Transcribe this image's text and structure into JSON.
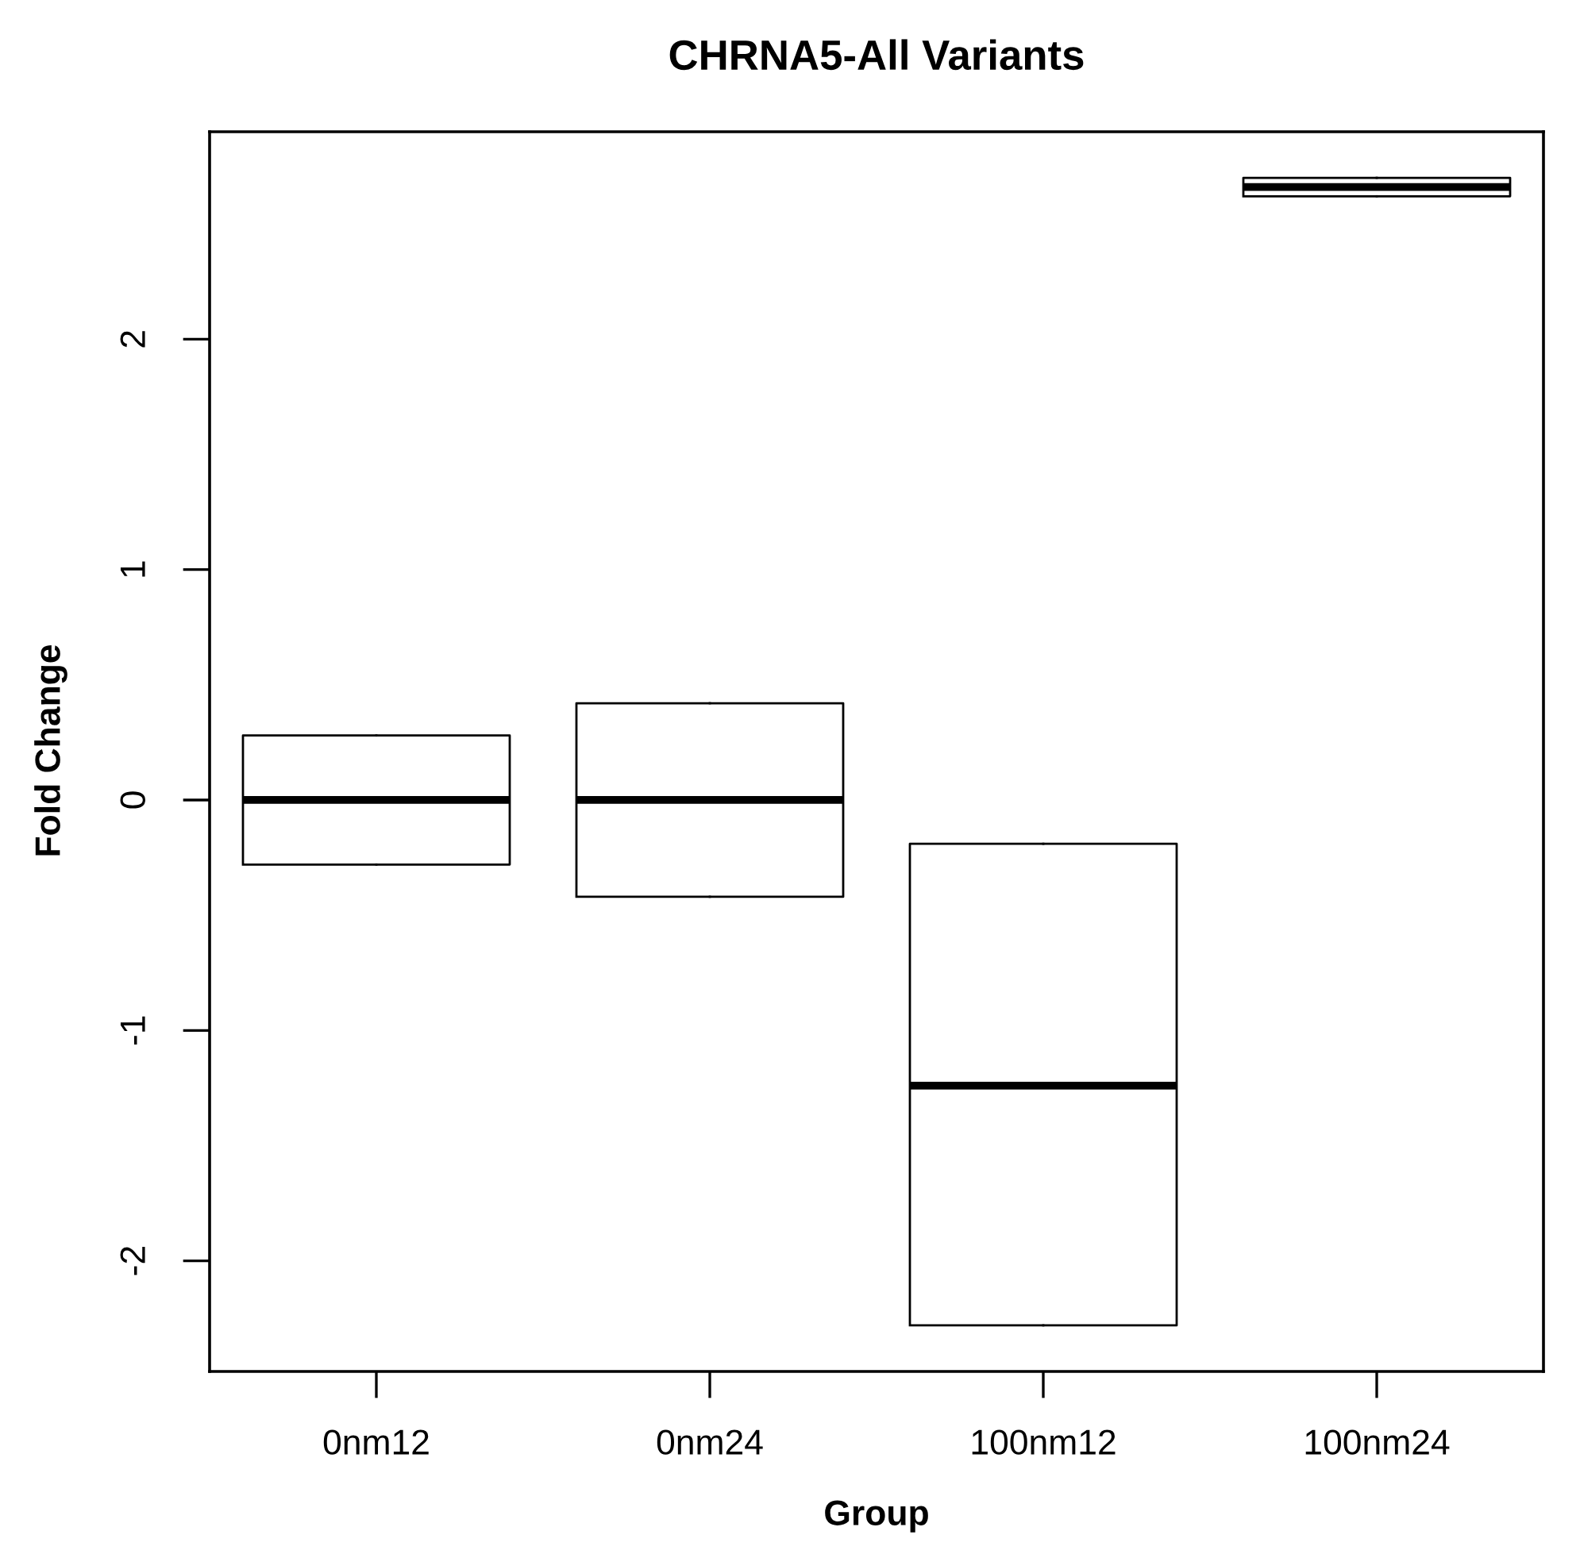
{
  "chart_data": {
    "type": "box",
    "title": "CHRNA5-All Variants",
    "xlabel": "Group",
    "ylabel": "Fold Change",
    "categories": [
      "0nm12",
      "0nm24",
      "100nm12",
      "100nm24"
    ],
    "boxes": [
      {
        "low": -0.28,
        "q1": -0.28,
        "median": 0.0,
        "q3": 0.28,
        "high": 0.28
      },
      {
        "low": -0.42,
        "q1": -0.42,
        "median": 0.0,
        "q3": 0.42,
        "high": 0.42
      },
      {
        "low": -2.28,
        "q1": -2.28,
        "median": -1.24,
        "q3": -0.19,
        "high": -0.19
      },
      {
        "low": 2.62,
        "q1": 2.62,
        "median": 2.66,
        "q3": 2.7,
        "high": 2.7
      }
    ],
    "ylim": [
      -2.48,
      2.9
    ],
    "yticks": [
      -2,
      -1,
      0,
      1,
      2
    ],
    "grid": false
  }
}
